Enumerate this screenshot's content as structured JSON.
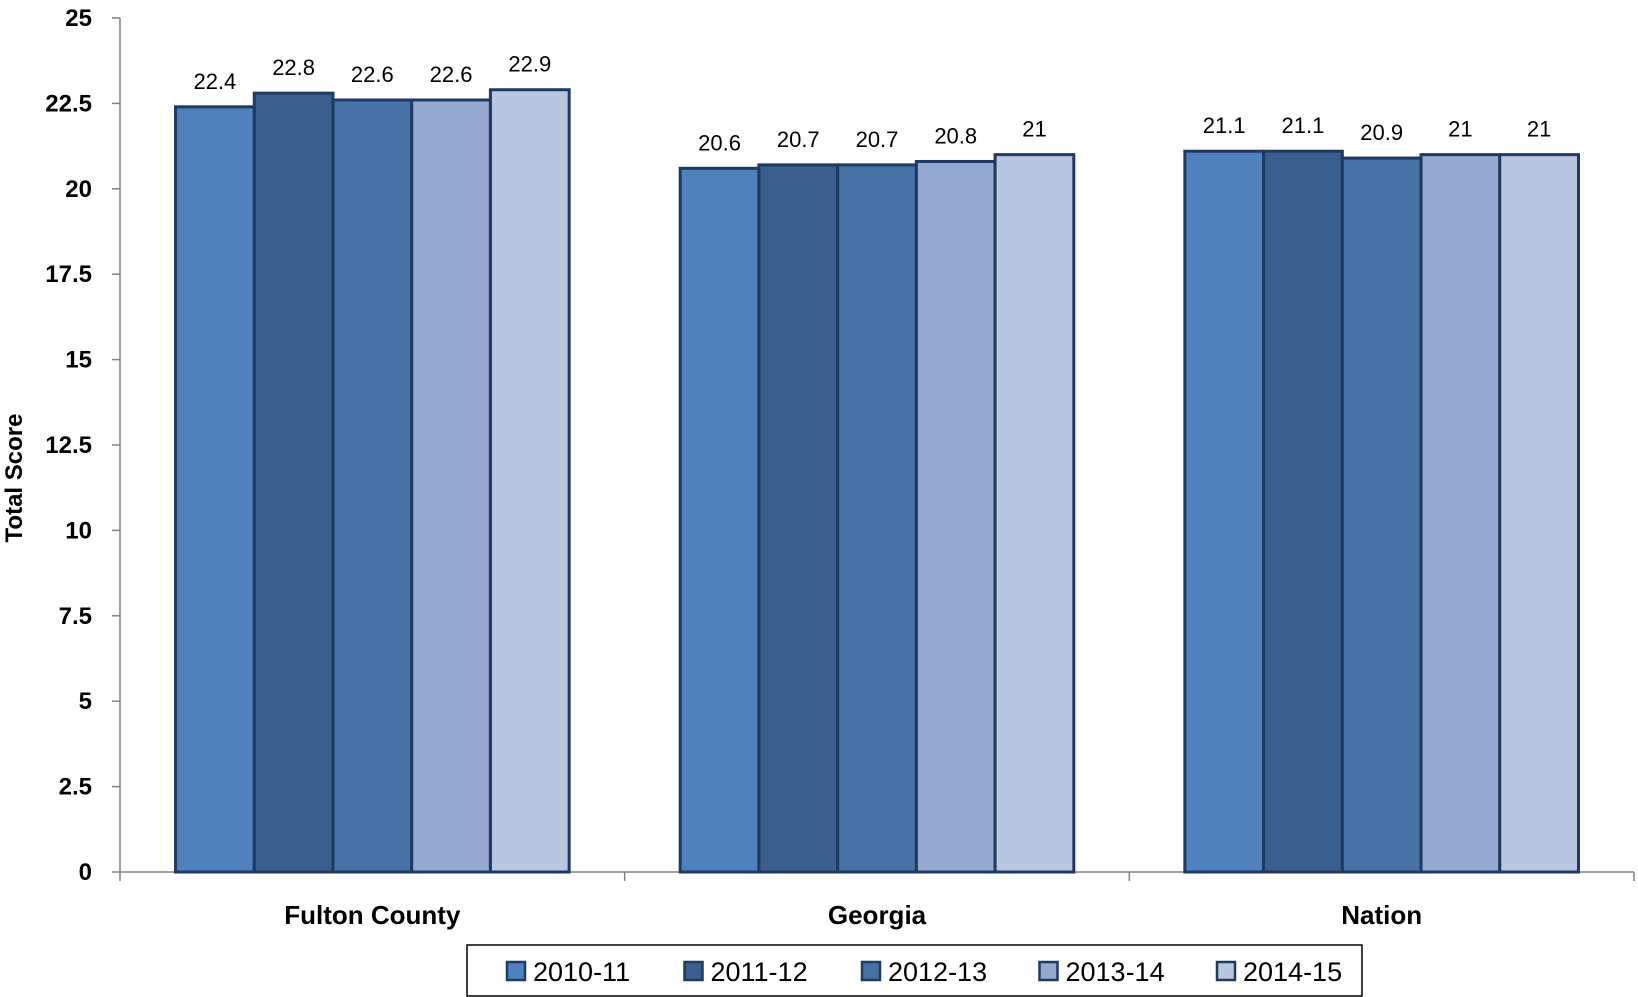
{
  "chart_data": {
    "type": "bar",
    "title": "",
    "xlabel": "",
    "ylabel": "Total Score",
    "ylim": [
      0,
      25
    ],
    "yticks": [
      0,
      2.5,
      5,
      7.5,
      10,
      12.5,
      15,
      17.5,
      20,
      22.5,
      25
    ],
    "categories": [
      "Fulton County",
      "Georgia",
      "Nation"
    ],
    "series": [
      {
        "name": "2010-11",
        "values": [
          22.4,
          20.6,
          21.1
        ],
        "color": "#4f81bd"
      },
      {
        "name": "2011-12",
        "values": [
          22.8,
          20.7,
          21.1
        ],
        "color": "#3a5f8f"
      },
      {
        "name": "2012-13",
        "values": [
          22.6,
          20.7,
          20.9
        ],
        "color": "#4672a6"
      },
      {
        "name": "2013-14",
        "values": [
          22.6,
          20.8,
          21
        ],
        "color": "#95a9d0"
      },
      {
        "name": "2014-15",
        "values": [
          22.9,
          21,
          21
        ],
        "color": "#bac7e1"
      }
    ],
    "bar_border_color": "#1f3a5f",
    "grid": false,
    "legend_position": "bottom"
  }
}
